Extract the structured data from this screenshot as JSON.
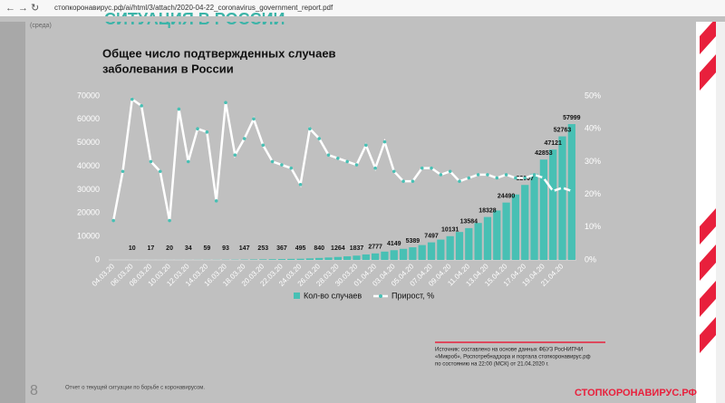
{
  "browser": {
    "url": "стопкоронавирус.рф/ai/html/3/attach/2020-04-22_coronavirus_government_report.pdf"
  },
  "slide": {
    "heading": "СИТУАЦИЯ В РОССИИ",
    "day": "(среда)",
    "source": [
      "Источник: составлено на основе данных ФБУЗ РосНИПЧИ",
      "«Микроб», Роспотребнадзора и портала стопкоронавирус.рф",
      "по состоянию на 22:00 (МСК) от 21.04.2020 г."
    ],
    "page_number": "8",
    "footer": "Отчет о текущей ситуации по борьбе с коронавирусом.",
    "logo": "СТОПКОРОНАВИРУС.РФ"
  },
  "chart_data": {
    "type": "bar_line",
    "title": [
      "Общее число подтвержденных случаев",
      "заболевания в России"
    ],
    "categories": [
      "04.03.20",
      null,
      "06.03.20",
      null,
      "08.03.20",
      null,
      "10.03.20",
      null,
      "12.03.20",
      null,
      "14.03.20",
      null,
      "16.03.20",
      null,
      "18.03.20",
      null,
      "20.03.20",
      null,
      "22.03.20",
      null,
      "24.03.20",
      null,
      "26.03.20",
      null,
      "28.03.20",
      null,
      "30.03.20",
      null,
      "01.04.20",
      null,
      "03.04.20",
      null,
      "05.04.20",
      null,
      "07.04.20",
      null,
      "09.04.20",
      null,
      "11.04.20",
      null,
      "13.04.20",
      null,
      "15.04.20",
      null,
      "17.04.20",
      null,
      "19.04.20",
      null,
      "21.04.20",
      null
    ],
    "series": [
      {
        "name": "Кол-во случаев",
        "color": "#48c0b4",
        "values": [
          3,
          4,
          10,
          14,
          17,
          17,
          20,
          28,
          34,
          45,
          59,
          63,
          93,
          114,
          147,
          199,
          253,
          306,
          367,
          438,
          495,
          658,
          840,
          1036,
          1264,
          1534,
          1837,
          2337,
          2777,
          3548,
          4149,
          4731,
          5389,
          6343,
          7497,
          8672,
          10131,
          11917,
          13584,
          15770,
          18328,
          21102,
          24490,
          27938,
          32007,
          36793,
          42853,
          47121,
          52763,
          57999
        ],
        "value_labels": [
          null,
          null,
          "10",
          null,
          "17",
          null,
          "20",
          null,
          "34",
          null,
          "59",
          null,
          "93",
          null,
          "147",
          null,
          "253",
          null,
          "367",
          null,
          "495",
          null,
          "840",
          null,
          "1264",
          null,
          "1837",
          null,
          "2777",
          null,
          "4149",
          null,
          "5389",
          null,
          "7497",
          null,
          "10131",
          null,
          "13584",
          null,
          "18328",
          null,
          "24490",
          null,
          "32007",
          null,
          "42853",
          "47121",
          "52763",
          "57999"
        ]
      },
      {
        "name": "Прирост, %",
        "color": "#ffffff",
        "marker_color": "#48c0b4",
        "axis": "y2",
        "values": [
          12,
          27,
          49,
          47,
          30,
          27,
          12,
          46,
          30,
          40,
          39,
          18,
          48,
          32,
          37,
          43,
          35,
          30,
          29,
          28,
          23,
          40,
          37,
          32,
          31,
          30,
          29,
          35,
          28,
          36,
          27,
          24,
          24,
          28,
          28,
          26,
          27,
          24,
          25,
          26,
          26,
          25,
          26,
          25,
          25,
          26,
          25,
          21,
          22,
          21
        ]
      }
    ],
    "ylim": [
      0,
      70000
    ],
    "yticks": [
      0,
      10000,
      20000,
      30000,
      40000,
      50000,
      60000,
      70000
    ],
    "y2lim": [
      0,
      50
    ],
    "y2ticks": [
      {
        "value": 0,
        "label": "0%"
      },
      {
        "value": 10,
        "label": "10%"
      },
      {
        "value": 20,
        "label": "20%"
      },
      {
        "value": 30,
        "label": "30%"
      },
      {
        "value": 40,
        "label": "40%"
      },
      {
        "value": 50,
        "label": "50%"
      }
    ]
  }
}
